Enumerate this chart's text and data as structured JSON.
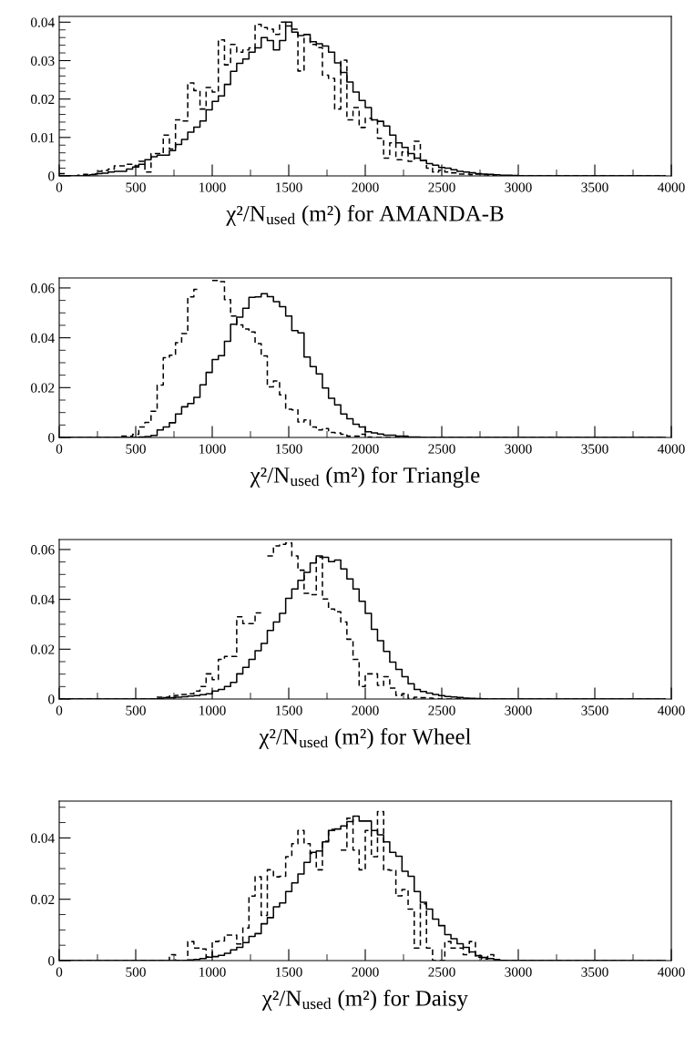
{
  "chart_data": [
    {
      "type": "step",
      "xlabel": "χ²/N$_{used}$ (m²) for AMANDA-B",
      "x": [
        0,
        40,
        80,
        120,
        160,
        200,
        240,
        280,
        320,
        360,
        400,
        440,
        480,
        520,
        560,
        600,
        640,
        680,
        720,
        760,
        800,
        840,
        880,
        920,
        960,
        1000,
        1040,
        1080,
        1120,
        1160,
        1200,
        1240,
        1280,
        1320,
        1360,
        1400,
        1440,
        1480,
        1520,
        1560,
        1600,
        1640,
        1680,
        1720,
        1760,
        1800,
        1840,
        1880,
        1920,
        1960,
        2000,
        2040,
        2080,
        2120,
        2160,
        2200,
        2240,
        2280,
        2320,
        2360,
        2400,
        2440,
        2480,
        2520,
        2560,
        2600,
        2640,
        2680,
        2720,
        2760,
        2800,
        2840,
        2880,
        2920,
        2960,
        3000,
        3040,
        3080,
        3120,
        3160,
        3200,
        3240,
        3280,
        3320,
        3360,
        3400,
        3440,
        3480,
        3520,
        3560,
        3600,
        3640,
        3680,
        3720,
        3760,
        3800,
        3840,
        3880,
        3920,
        3960
      ],
      "xlim": [
        0,
        4000
      ],
      "xticks": [
        0,
        {
          "value": 250,
          "label": null
        },
        500,
        {
          "value": 750,
          "label": null
        },
        1000,
        {
          "value": 1250,
          "label": null
        },
        1500,
        {
          "value": 1750,
          "label": null
        },
        2000,
        {
          "value": 2250,
          "label": null
        },
        2500,
        {
          "value": 2750,
          "label": null
        },
        3000,
        {
          "value": 3250,
          "label": null
        },
        3500,
        {
          "value": 3750,
          "label": null
        },
        4000
      ],
      "ylim": [
        0,
        0.0415
      ],
      "yticks": [
        0,
        {
          "value": 0.002,
          "label": null
        },
        {
          "value": 0.004,
          "label": null
        },
        {
          "value": 0.006,
          "label": null
        },
        {
          "value": 0.008,
          "label": null
        },
        0.01,
        {
          "value": 0.012,
          "label": null
        },
        {
          "value": 0.014,
          "label": null
        },
        {
          "value": 0.016,
          "label": null
        },
        {
          "value": 0.018,
          "label": null
        },
        0.02,
        {
          "value": 0.022,
          "label": null
        },
        {
          "value": 0.024,
          "label": null
        },
        {
          "value": 0.026,
          "label": null
        },
        {
          "value": 0.028,
          "label": null
        },
        0.03,
        {
          "value": 0.032,
          "label": null
        },
        {
          "value": 0.034,
          "label": null
        },
        {
          "value": 0.036,
          "label": null
        },
        {
          "value": 0.038,
          "label": null
        },
        0.04
      ],
      "series": [
        {
          "color": "#000000",
          "line_style": "solid",
          "values": [
            0,
            0,
            0,
            0,
            0.0002,
            0.0003,
            0.0006,
            0.0007,
            0.001,
            0.0012,
            0.0012,
            0.0018,
            0.0023,
            0.003,
            0.0042,
            0.005,
            0.0054,
            0.0054,
            0.0066,
            0.0082,
            0.0095,
            0.0114,
            0.0127,
            0.0143,
            0.0172,
            0.0194,
            0.0208,
            0.0238,
            0.0272,
            0.0293,
            0.0304,
            0.0322,
            0.0333,
            0.036,
            0.0352,
            0.0328,
            0.0352,
            0.04,
            0.0374,
            0.0365,
            0.0368,
            0.0349,
            0.0344,
            0.0338,
            0.0322,
            0.0294,
            0.0269,
            0.0244,
            0.0218,
            0.0196,
            0.0178,
            0.0146,
            0.0142,
            0.013,
            0.0106,
            0.0086,
            0.0074,
            0.0058,
            0.0046,
            0.004,
            0.0032,
            0.0028,
            0.0022,
            0.002,
            0.0016,
            0.0012,
            0.001,
            0.0008,
            0.0006,
            0.0005,
            0.0004,
            0.0003,
            0.0002,
            0.0002,
            0.0001,
            0,
            0,
            0,
            0,
            0,
            0,
            0,
            0,
            0,
            0,
            0,
            0,
            0,
            0,
            0,
            0,
            0,
            0,
            0,
            0,
            0,
            0,
            0,
            0,
            0
          ]
        },
        {
          "color": "#000000",
          "line_style": "dashed",
          "values": [
            0.0006,
            0,
            0,
            0.0002,
            0.0004,
            0.0004,
            0.0012,
            0.0014,
            0.0018,
            0.0026,
            0.0026,
            0.003,
            0.0026,
            0.0038,
            0.001,
            0.0058,
            0.0058,
            0.0106,
            0.007,
            0.0146,
            0.0143,
            0.0242,
            0.0222,
            0.0174,
            0.023,
            0.0218,
            0.0354,
            0.0289,
            0.0342,
            0.0322,
            0.0328,
            0.0333,
            0.0394,
            0.0386,
            0.0382,
            0.0368,
            0.04,
            0.039,
            0.0382,
            0.0273,
            0.0368,
            0.0342,
            0.0334,
            0.0262,
            0.0254,
            0.0174,
            0.0301,
            0.0146,
            0.0178,
            0.0126,
            0.015,
            0.0146,
            0.0098,
            0.0046,
            0.0086,
            0.0042,
            0.0062,
            0.0038,
            0.009,
            0.004,
            0.002,
            0.001,
            0.0015,
            0.001,
            0.0008,
            0.0005,
            0.0005,
            0.0003,
            0.0005,
            0.0003,
            0.0002,
            0,
            0,
            0,
            0,
            0,
            0,
            0,
            0,
            0,
            0,
            0,
            0,
            0,
            0,
            0,
            0,
            0,
            0,
            0,
            0,
            0,
            0,
            0,
            0,
            0,
            0,
            0,
            0,
            0
          ]
        }
      ]
    },
    {
      "type": "step",
      "xlabel": "χ²/N$_{used}$ (m²) for Triangle",
      "x": [
        0,
        40,
        80,
        120,
        160,
        200,
        240,
        280,
        320,
        360,
        400,
        440,
        480,
        520,
        560,
        600,
        640,
        680,
        720,
        760,
        800,
        840,
        880,
        920,
        960,
        1000,
        1040,
        1080,
        1120,
        1160,
        1200,
        1240,
        1280,
        1320,
        1360,
        1400,
        1440,
        1480,
        1520,
        1560,
        1600,
        1640,
        1680,
        1720,
        1760,
        1800,
        1840,
        1880,
        1920,
        1960,
        2000,
        2040,
        2080,
        2120,
        2160,
        2200,
        2240,
        2280,
        2320,
        2360,
        2400,
        2440,
        2480,
        2520,
        2560,
        2600,
        2640,
        2680,
        2720,
        2760,
        2800,
        2840,
        2880,
        2920,
        2960,
        3000,
        3040,
        3080,
        3120,
        3160,
        3200,
        3240,
        3280,
        3320,
        3360,
        3400,
        3440,
        3480,
        3520,
        3560,
        3600,
        3640,
        3680,
        3720,
        3760,
        3800,
        3840,
        3880,
        3920,
        3960
      ],
      "xlim": [
        0,
        4000
      ],
      "xticks": [
        0,
        {
          "value": 250,
          "label": null
        },
        500,
        {
          "value": 750,
          "label": null
        },
        1000,
        {
          "value": 1250,
          "label": null
        },
        1500,
        {
          "value": 1750,
          "label": null
        },
        2000,
        {
          "value": 2250,
          "label": null
        },
        2500,
        {
          "value": 2750,
          "label": null
        },
        3000,
        {
          "value": 3250,
          "label": null
        },
        3500,
        {
          "value": 3750,
          "label": null
        },
        4000
      ],
      "ylim": [
        0,
        0.064
      ],
      "yticks": [
        0,
        {
          "value": 0.005,
          "label": null
        },
        {
          "value": 0.01,
          "label": null
        },
        {
          "value": 0.015,
          "label": null
        },
        0.02,
        {
          "value": 0.025,
          "label": null
        },
        {
          "value": 0.03,
          "label": null
        },
        {
          "value": 0.035,
          "label": null
        },
        0.04,
        {
          "value": 0.045,
          "label": null
        },
        {
          "value": 0.05,
          "label": null
        },
        {
          "value": 0.055,
          "label": null
        },
        0.06
      ],
      "series": [
        {
          "color": "#000000",
          "line_style": "solid",
          "values": [
            0,
            0,
            0,
            0,
            0,
            0,
            0,
            0,
            0,
            0,
            0,
            0,
            0,
            0.0002,
            0.0004,
            0.0008,
            0.003,
            0.0042,
            0.0059,
            0.0094,
            0.0123,
            0.0136,
            0.0161,
            0.0211,
            0.0261,
            0.0313,
            0.0328,
            0.0386,
            0.0454,
            0.0483,
            0.0518,
            0.0562,
            0.0564,
            0.0577,
            0.0565,
            0.0545,
            0.0525,
            0.0487,
            0.0429,
            0.042,
            0.0323,
            0.0284,
            0.0255,
            0.0198,
            0.0157,
            0.0131,
            0.0094,
            0.0075,
            0.0053,
            0.0042,
            0.0023,
            0.0018,
            0.0014,
            0.0009,
            0.0009,
            0.0005,
            0.0005,
            0.0002,
            0.0002,
            0,
            0,
            0,
            0,
            0,
            0,
            0,
            0,
            0,
            0,
            0,
            0,
            0,
            0,
            0,
            0,
            0,
            0,
            0,
            0,
            0,
            0,
            0,
            0,
            0,
            0,
            0,
            0,
            0,
            0,
            0,
            0,
            0,
            0,
            0,
            0,
            0,
            0,
            0,
            0,
            0
          ]
        },
        {
          "color": "#000000",
          "line_style": "dashed",
          "values": [
            0,
            0,
            0,
            0,
            0,
            0,
            0,
            0,
            0,
            0,
            0.0005,
            0.0005,
            0.0013,
            0.0042,
            0.006,
            0.0105,
            0.021,
            0.032,
            0.033,
            0.038,
            0.0417,
            0.0564,
            0.0594,
            null,
            null,
            0.063,
            0.0625,
            0.0553,
            0.0487,
            0.0452,
            0.0435,
            0.0423,
            0.0377,
            0.0327,
            0.0203,
            0.0227,
            0.0171,
            0.0113,
            0.0111,
            0.0062,
            0.007,
            0.0042,
            0.003,
            0.0036,
            0.002,
            0.0018,
            0.0013,
            0.0005,
            0.0005,
            0.0013,
            0.0002,
            0,
            0,
            0,
            0,
            0,
            0,
            0,
            0,
            0,
            0,
            0,
            0,
            0,
            0,
            0,
            0,
            0,
            0,
            0,
            0,
            0,
            0,
            0,
            0,
            0,
            0,
            0,
            0,
            0,
            0,
            0,
            0,
            0,
            0,
            0,
            0,
            0,
            0,
            0,
            0,
            0,
            0,
            0,
            0,
            0,
            0,
            0,
            0,
            0
          ]
        }
      ]
    },
    {
      "type": "step",
      "xlabel": "χ²/N$_{used}$ (m²) for Wheel",
      "x": [
        0,
        40,
        80,
        120,
        160,
        200,
        240,
        280,
        320,
        360,
        400,
        440,
        480,
        520,
        560,
        600,
        640,
        680,
        720,
        760,
        800,
        840,
        880,
        920,
        960,
        1000,
        1040,
        1080,
        1120,
        1160,
        1200,
        1240,
        1280,
        1320,
        1360,
        1400,
        1440,
        1480,
        1520,
        1560,
        1600,
        1640,
        1680,
        1720,
        1760,
        1800,
        1840,
        1880,
        1920,
        1960,
        2000,
        2040,
        2080,
        2120,
        2160,
        2200,
        2240,
        2280,
        2320,
        2360,
        2400,
        2440,
        2480,
        2520,
        2560,
        2600,
        2640,
        2680,
        2720,
        2760,
        2800,
        2840,
        2880,
        2920,
        2960,
        3000,
        3040,
        3080,
        3120,
        3160,
        3200,
        3240,
        3280,
        3320,
        3360,
        3400,
        3440,
        3480,
        3520,
        3560,
        3600,
        3640,
        3680,
        3720,
        3760,
        3800,
        3840,
        3880,
        3920,
        3960
      ],
      "xlim": [
        0,
        4000
      ],
      "xticks": [
        0,
        {
          "value": 250,
          "label": null
        },
        500,
        {
          "value": 750,
          "label": null
        },
        1000,
        {
          "value": 1250,
          "label": null
        },
        1500,
        {
          "value": 1750,
          "label": null
        },
        2000,
        {
          "value": 2250,
          "label": null
        },
        2500,
        {
          "value": 2750,
          "label": null
        },
        3000,
        {
          "value": 3250,
          "label": null
        },
        3500,
        {
          "value": 3750,
          "label": null
        },
        4000
      ],
      "ylim": [
        0,
        0.064
      ],
      "yticks": [
        0,
        {
          "value": 0.005,
          "label": null
        },
        {
          "value": 0.01,
          "label": null
        },
        {
          "value": 0.015,
          "label": null
        },
        0.02,
        {
          "value": 0.025,
          "label": null
        },
        {
          "value": 0.03,
          "label": null
        },
        {
          "value": 0.035,
          "label": null
        },
        0.04,
        {
          "value": 0.045,
          "label": null
        },
        {
          "value": 0.05,
          "label": null
        },
        {
          "value": 0.055,
          "label": null
        },
        0.06
      ],
      "series": [
        {
          "color": "#000000",
          "line_style": "solid",
          "values": [
            0,
            0,
            0,
            0,
            0,
            0,
            0,
            0,
            0,
            0,
            0,
            0,
            0,
            0,
            0,
            0,
            0.0002,
            0.0005,
            0.0005,
            0.0007,
            0.0009,
            0.0012,
            0.0014,
            0.0017,
            0.0021,
            0.0032,
            0.0038,
            0.005,
            0.0067,
            0.0101,
            0.0127,
            0.0159,
            0.0194,
            0.0223,
            0.0275,
            0.0309,
            0.0344,
            0.0404,
            0.0442,
            0.0476,
            0.0508,
            0.0546,
            0.0574,
            0.0569,
            0.0551,
            0.0558,
            0.0522,
            0.0482,
            0.0442,
            0.0392,
            0.0344,
            0.028,
            0.0234,
            0.0191,
            0.0148,
            0.0119,
            0.009,
            0.0061,
            0.0038,
            0.003,
            0.0024,
            0.0018,
            0.0014,
            0.001,
            0.0008,
            0.0006,
            0.0004,
            0.0003,
            0.0002,
            0.0001,
            0,
            0,
            0,
            0,
            0,
            0,
            0,
            0,
            0,
            0,
            0,
            0,
            0,
            0,
            0,
            0,
            0,
            0,
            0,
            0,
            0,
            0,
            0,
            0,
            0,
            0,
            0,
            0,
            0,
            0
          ]
        },
        {
          "color": "#000000",
          "line_style": "dashed",
          "values": [
            0,
            0,
            0,
            0,
            0,
            0,
            0,
            0,
            0,
            0,
            0,
            0,
            0,
            0,
            0,
            0,
            0.0007,
            0.0007,
            0.0012,
            0.0015,
            0.0018,
            0.0021,
            0.0032,
            0.005,
            0.0101,
            0.0078,
            0.0159,
            0.0171,
            0.0171,
            0.033,
            0.0303,
            0.0303,
            0.0346,
            null,
            0.0574,
            0.0614,
            0.0621,
            0.0626,
            0.0574,
            0.0517,
            0.0424,
            0.0419,
            0.0569,
            0.0401,
            0.0361,
            0.035,
            0.0309,
            0.024,
            0.0159,
            0.005,
            0.0101,
            0.0101,
            0.0055,
            0.009,
            0.0044,
            0.0015,
            0.0021,
            0.0003,
            0.0007,
            0.0005,
            0.0004,
            0.0002,
            0,
            0,
            0,
            0,
            0,
            0,
            0,
            0,
            0,
            0,
            0,
            0,
            0,
            0,
            0,
            0,
            0,
            0,
            0,
            0,
            0,
            0,
            0,
            0,
            0,
            0,
            0,
            0,
            0,
            0,
            0,
            0,
            0,
            0,
            0,
            0,
            0,
            0
          ]
        }
      ]
    },
    {
      "type": "step",
      "xlabel": "χ²/N$_{used}$ (m²) for Daisy",
      "x": [
        0,
        40,
        80,
        120,
        160,
        200,
        240,
        280,
        320,
        360,
        400,
        440,
        480,
        520,
        560,
        600,
        640,
        680,
        720,
        760,
        800,
        840,
        880,
        920,
        960,
        1000,
        1040,
        1080,
        1120,
        1160,
        1200,
        1240,
        1280,
        1320,
        1360,
        1400,
        1440,
        1480,
        1520,
        1560,
        1600,
        1640,
        1680,
        1720,
        1760,
        1800,
        1840,
        1880,
        1920,
        1960,
        2000,
        2040,
        2080,
        2120,
        2160,
        2200,
        2240,
        2280,
        2320,
        2360,
        2400,
        2440,
        2480,
        2520,
        2560,
        2600,
        2640,
        2680,
        2720,
        2760,
        2800,
        2840,
        2880,
        2920,
        2960,
        3000,
        3040,
        3080,
        3120,
        3160,
        3200,
        3240,
        3280,
        3320,
        3360,
        3400,
        3440,
        3480,
        3520,
        3560,
        3600,
        3640,
        3680,
        3720,
        3760,
        3800,
        3840,
        3880,
        3920,
        3960
      ],
      "xlim": [
        0,
        4000
      ],
      "xticks": [
        0,
        {
          "value": 250,
          "label": null
        },
        500,
        {
          "value": 750,
          "label": null
        },
        1000,
        {
          "value": 1250,
          "label": null
        },
        1500,
        {
          "value": 1750,
          "label": null
        },
        2000,
        {
          "value": 2250,
          "label": null
        },
        2500,
        {
          "value": 2750,
          "label": null
        },
        3000,
        {
          "value": 3250,
          "label": null
        },
        3500,
        {
          "value": 3750,
          "label": null
        },
        4000
      ],
      "ylim": [
        0,
        0.052
      ],
      "yticks": [
        0,
        {
          "value": 0.005,
          "label": null
        },
        {
          "value": 0.01,
          "label": null
        },
        {
          "value": 0.015,
          "label": null
        },
        0.02,
        {
          "value": 0.025,
          "label": null
        },
        {
          "value": 0.03,
          "label": null
        },
        {
          "value": 0.035,
          "label": null
        },
        0.04,
        {
          "value": 0.045,
          "label": null
        },
        {
          "value": 0.05,
          "label": null
        }
      ],
      "series": [
        {
          "color": "#000000",
          "line_style": "solid",
          "values": [
            0,
            0,
            0,
            0,
            0,
            0,
            0,
            0,
            0,
            0,
            0,
            0,
            0,
            0,
            0,
            0,
            0,
            0,
            0,
            0,
            0,
            0.0002,
            0.0004,
            0.0007,
            0.0011,
            0.0013,
            0.0017,
            0.0024,
            0.0035,
            0.0043,
            0.0059,
            0.0079,
            0.0088,
            0.012,
            0.014,
            0.0175,
            0.0188,
            0.0225,
            0.0253,
            0.0282,
            0.032,
            0.0353,
            0.0357,
            0.0387,
            0.0424,
            0.0429,
            0.0439,
            0.0453,
            0.0471,
            0.0455,
            0.0455,
            0.0424,
            0.041,
            0.0387,
            0.0353,
            0.034,
            0.0291,
            0.0275,
            0.0225,
            0.019,
            0.0168,
            0.0135,
            0.0114,
            0.0085,
            0.0071,
            0.0055,
            0.0043,
            0.0028,
            0.0016,
            0.001,
            0.0007,
            0.0003,
            0.0001,
            0,
            0,
            0,
            0,
            0,
            0,
            0,
            0,
            0,
            0,
            0,
            0,
            0,
            0,
            0,
            0,
            0,
            0,
            0,
            0,
            0,
            0,
            0,
            0,
            0,
            0,
            0
          ]
        },
        {
          "color": "#000000",
          "line_style": "dashed",
          "values": [
            0,
            0,
            0,
            0,
            0,
            0,
            0,
            0,
            0,
            0,
            0,
            0,
            0,
            0,
            0,
            0,
            0,
            0,
            0.0019,
            0,
            0,
            0.0062,
            0.0041,
            0.0038,
            0.0012,
            0.0062,
            0.0064,
            0.0083,
            0.0083,
            0.0054,
            0.0106,
            0.021,
            0.0273,
            0.0147,
            0.0296,
            0.0273,
            0.0275,
            0.0339,
            0.0381,
            0.0424,
            0.0381,
            0.0349,
            0.0296,
            0.0389,
            0.0428,
            null,
            0.036,
            0.0464,
            0.036,
            0.0296,
            0.0424,
            0.0339,
            0.0486,
            0.0296,
            0.0294,
            0.0211,
            0.0232,
            0.0168,
            0.0041,
            0.0185,
            0.0041,
            0,
            0,
            0.0062,
            0.0041,
            0.0041,
            0.0019,
            0.0062,
            0.0011,
            0.0005,
            0.0019,
            0.0003,
            0,
            0,
            0,
            0,
            0,
            0,
            0,
            0,
            0,
            0,
            0,
            0,
            0,
            0,
            0,
            0,
            0,
            0,
            0,
            0,
            0,
            0,
            0,
            0,
            0,
            0,
            0,
            0
          ]
        }
      ]
    }
  ]
}
